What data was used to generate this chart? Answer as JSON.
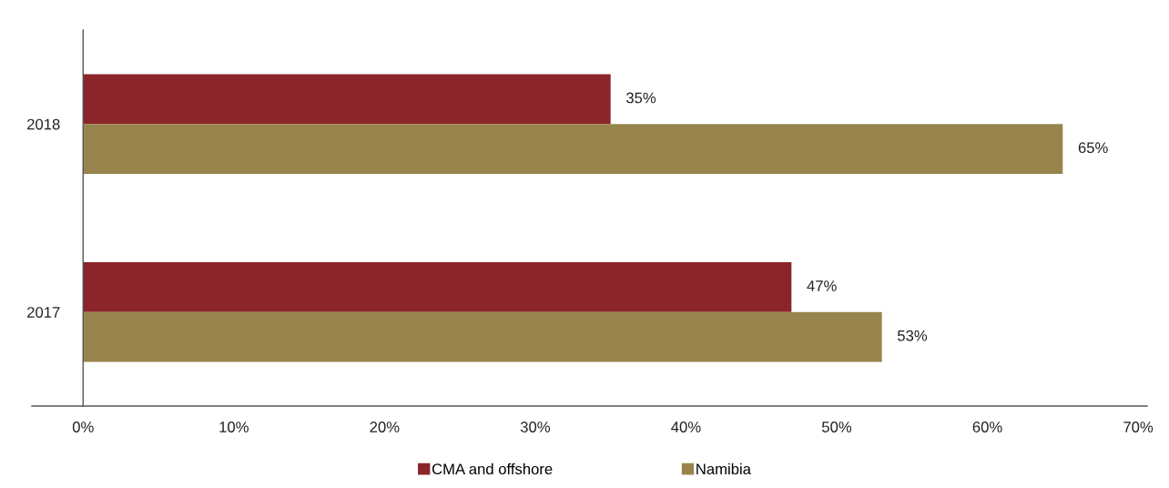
{
  "chart_data": {
    "type": "bar",
    "orientation": "horizontal",
    "categories": [
      "2018",
      "2017"
    ],
    "series": [
      {
        "name": "CMA and offshore",
        "color": "#8b2529",
        "values": [
          35,
          47
        ],
        "value_labels": [
          "35%",
          "47%"
        ]
      },
      {
        "name": "Namibia",
        "color": "#97844d",
        "values": [
          65,
          53
        ],
        "value_labels": [
          "65%",
          "53%"
        ]
      }
    ],
    "xlim": [
      -3.4,
      70.6
    ],
    "xticks": [
      {
        "value": 0,
        "label": "0%"
      },
      {
        "value": 10,
        "label": "10%"
      },
      {
        "value": 20,
        "label": "20%"
      },
      {
        "value": 30,
        "label": "30%"
      },
      {
        "value": 40,
        "label": "40%"
      },
      {
        "value": 50,
        "label": "50%"
      },
      {
        "value": 60,
        "label": "60%"
      },
      {
        "value": 70,
        "label": "70%"
      }
    ],
    "grid": false,
    "legend": "bottom"
  }
}
